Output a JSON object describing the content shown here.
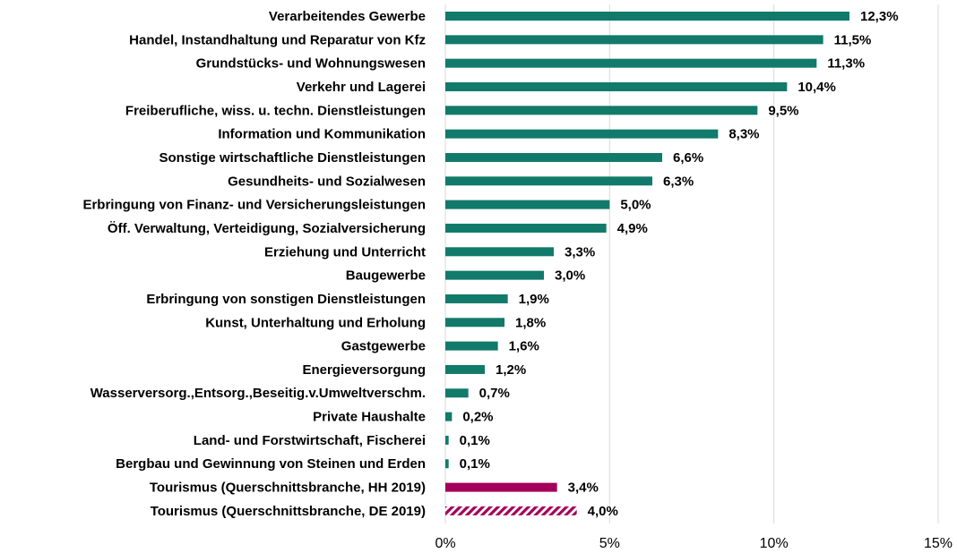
{
  "chart_data": {
    "type": "barh",
    "categories": [
      "Verarbeitendes Gewerbe",
      "Handel, Instandhaltung und Reparatur von Kfz",
      "Grundstücks- und Wohnungswesen",
      "Verkehr und Lagerei",
      "Freiberufliche, wiss. u. techn. Dienstleistungen",
      "Information und Kommunikation",
      "Sonstige wirtschaftliche Dienstleistungen",
      "Gesundheits- und Sozialwesen",
      "Erbringung von Finanz- und Versicherungsleistungen",
      "Öff. Verwaltung, Verteidigung, Sozialversicherung",
      "Erziehung und Unterricht",
      "Baugewerbe",
      "Erbringung von sonstigen Dienstleistungen",
      "Kunst, Unterhaltung und Erholung",
      "Gastgewerbe",
      "Energieversorgung",
      "Wasserversorg.,Entsorg.,Beseitig.v.Umweltverschm.",
      "Private Haushalte",
      "Land- und Forstwirtschaft, Fischerei",
      "Bergbau und Gewinnung von Steinen und Erden",
      "Tourismus (Querschnittsbranche, HH 2019)",
      "Tourismus (Querschnittsbranche, DE 2019)"
    ],
    "values": [
      12.3,
      11.5,
      11.3,
      10.4,
      9.5,
      8.3,
      6.6,
      6.3,
      5.0,
      4.9,
      3.3,
      3.0,
      1.9,
      1.8,
      1.6,
      1.2,
      0.7,
      0.2,
      0.1,
      0.1,
      3.4,
      4.0
    ],
    "value_labels": [
      "12,3%",
      "11,5%",
      "11,3%",
      "10,4%",
      "9,5%",
      "8,3%",
      "6,6%",
      "6,3%",
      "5,0%",
      "4,9%",
      "3,3%",
      "3,0%",
      "1,9%",
      "1,8%",
      "1,6%",
      "1,2%",
      "0,7%",
      "0,2%",
      "0,1%",
      "0,1%",
      "3,4%",
      "4,0%"
    ],
    "colors": [
      "#127a6a",
      "#127a6a",
      "#127a6a",
      "#127a6a",
      "#127a6a",
      "#127a6a",
      "#127a6a",
      "#127a6a",
      "#127a6a",
      "#127a6a",
      "#127a6a",
      "#127a6a",
      "#127a6a",
      "#127a6a",
      "#127a6a",
      "#127a6a",
      "#127a6a",
      "#127a6a",
      "#127a6a",
      "#127a6a",
      "#a3005a",
      "#a3005a"
    ],
    "hatched": [
      false,
      false,
      false,
      false,
      false,
      false,
      false,
      false,
      false,
      false,
      false,
      false,
      false,
      false,
      false,
      false,
      false,
      false,
      false,
      false,
      false,
      true
    ],
    "xlim": [
      0,
      15
    ],
    "xticks": [
      {
        "value": 0,
        "label": "0%"
      },
      {
        "value": 5,
        "label": "5%"
      },
      {
        "value": 10,
        "label": "10%"
      },
      {
        "value": 15,
        "label": "15%"
      }
    ],
    "grid": true
  }
}
